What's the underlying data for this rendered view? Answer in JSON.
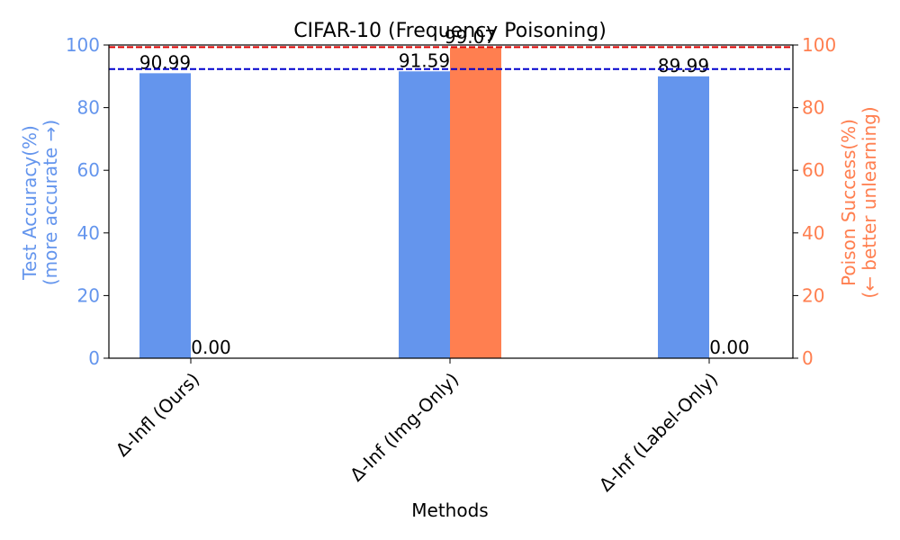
{
  "chart_data": {
    "type": "bar",
    "title": "CIFAR-10 (Frequency Poisoning)",
    "xlabel": "Methods",
    "categories": [
      "Δ-Infl (Ours)",
      "Δ-Inf (Img-Only)",
      "Δ-Inf (Label-Only)"
    ],
    "y_left": {
      "label_line1": "Test Accuracy(%)",
      "label_line2": "(more accurate →)",
      "ylim": [
        0,
        100
      ],
      "ticks": [
        0,
        20,
        40,
        60,
        80,
        100
      ],
      "color": "#6495ED"
    },
    "y_right": {
      "label_line1": "Poison Success(%)",
      "label_line2": "(← better unlearning)",
      "ylim": [
        0,
        100
      ],
      "ticks": [
        0,
        20,
        40,
        60,
        80,
        100
      ],
      "color": "#FF7F50"
    },
    "series": [
      {
        "name": "Test Accuracy",
        "axis": "left",
        "color": "#6495ED",
        "values": [
          90.99,
          91.59,
          89.99
        ],
        "labels": [
          "90.99",
          "91.59",
          "89.99"
        ]
      },
      {
        "name": "Poison Success",
        "axis": "right",
        "color": "#FF7F50",
        "values": [
          0.0,
          99.07,
          0.0
        ],
        "labels": [
          "0.00",
          "99.07",
          "0.00"
        ]
      }
    ],
    "reference_lines": [
      {
        "axis": "left",
        "value": 92.3,
        "color": "#0000CD",
        "style": "dashed"
      },
      {
        "axis": "right",
        "value": 99.3,
        "color": "#DD0000",
        "style": "dashed"
      }
    ],
    "grid": false,
    "legend": "none"
  }
}
